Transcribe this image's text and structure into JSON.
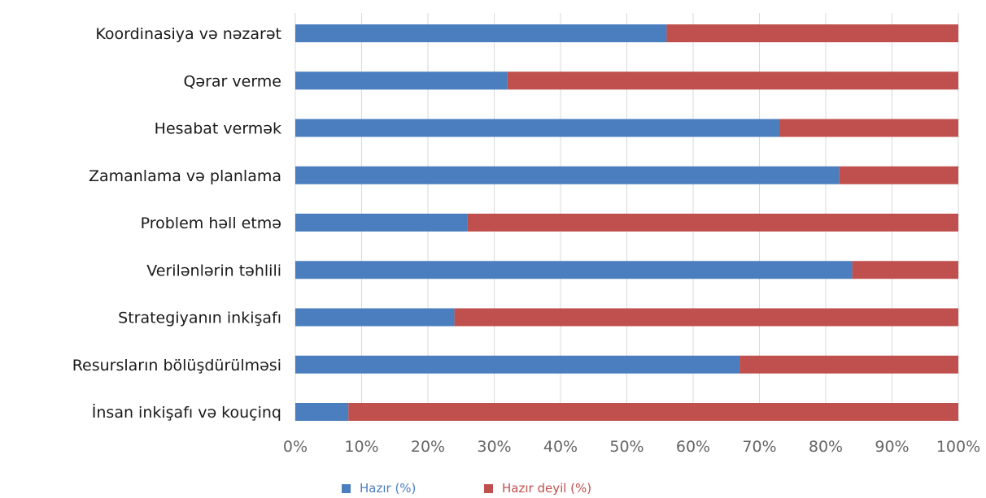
{
  "chart_data": {
    "type": "bar",
    "orientation": "horizontal",
    "stacked": true,
    "categories": [
      "Koordinasiya və nəzarət",
      "Qərar verme",
      "Hesabat vermək",
      "Zamanlama və planlama",
      "Problem həll etmə",
      "Verilənlərin təhlili",
      "Strategiyanın inkişafı",
      "Resursların bölüşdürülməsi",
      "İnsan inkişafı və kouçinq"
    ],
    "series": [
      {
        "name": "Hazır (%)",
        "color": "#4a7ebf",
        "values": [
          56,
          32,
          73,
          82,
          26,
          84,
          24,
          67,
          8
        ]
      },
      {
        "name": "Hazır deyil (%)",
        "color": "#c0504d",
        "values": [
          44,
          68,
          27,
          18,
          74,
          16,
          76,
          33,
          92
        ]
      }
    ],
    "xticks": [
      "0%",
      "10%",
      "20%",
      "30%",
      "40%",
      "50%",
      "60%",
      "70%",
      "80%",
      "90%",
      "100%"
    ],
    "xlim": [
      0,
      100
    ],
    "grid": "vertical",
    "legend_position": "bottom"
  }
}
